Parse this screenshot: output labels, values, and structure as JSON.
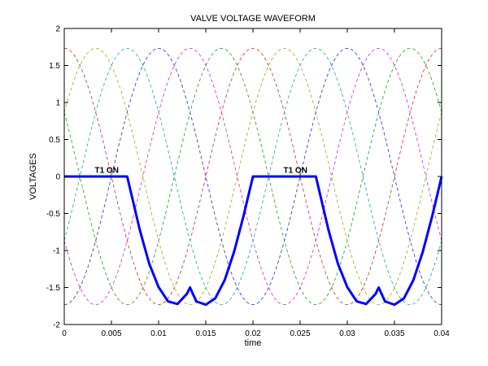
{
  "chart_data": {
    "type": "line",
    "title": "VALVE VOLTAGE WAVEFORM",
    "xlabel": "time",
    "ylabel": "VOLTAGES",
    "xlim": [
      0,
      0.04
    ],
    "ylim": [
      -2,
      2
    ],
    "x_ticks": [
      "0",
      "0.005",
      "0.01",
      "0.015",
      "0.02",
      "0.025",
      "0.03",
      "0.035",
      "0.04"
    ],
    "y_ticks": [
      "2",
      "1.5",
      "1",
      "0.5",
      "0",
      "-0.5",
      "-1",
      "-1.5",
      "-2"
    ],
    "grid": false,
    "legend": "none",
    "background_series": {
      "style": "dashed",
      "amplitude": 1.732,
      "frequency_hz": 50,
      "phase_offsets_deg": [
        90,
        30,
        -30,
        -90,
        -150,
        150
      ],
      "colors": [
        "#cc4040",
        "#b0b030",
        "#30b0b0",
        "#4040cc",
        "#cc40cc",
        "#40a040"
      ]
    },
    "main_series": {
      "style": "solid-thick",
      "color": "#0000ff",
      "x": [
        0,
        0.00667,
        0.008,
        0.009,
        0.01,
        0.011,
        0.012,
        0.013,
        0.01333,
        0.014,
        0.015,
        0.016,
        0.017,
        0.018,
        0.019,
        0.02,
        0.02667,
        0.028,
        0.029,
        0.03,
        0.031,
        0.032,
        0.033,
        0.03333,
        0.034,
        0.035,
        0.036,
        0.037,
        0.038,
        0.039,
        0.04
      ],
      "y": [
        0,
        0,
        -0.719,
        -1.176,
        -1.495,
        -1.688,
        -1.723,
        -1.586,
        -1.5,
        -1.688,
        -1.732,
        -1.647,
        -1.401,
        -1.018,
        -0.535,
        0,
        0,
        -0.719,
        -1.176,
        -1.495,
        -1.688,
        -1.723,
        -1.586,
        -1.5,
        -1.688,
        -1.732,
        -1.647,
        -1.401,
        -1.018,
        -0.535,
        0
      ]
    },
    "annotations": [
      {
        "text": "T1 ON",
        "x": 0.0045,
        "y": 0.05
      },
      {
        "text": "T1 ON",
        "x": 0.0245,
        "y": 0.05
      }
    ]
  }
}
